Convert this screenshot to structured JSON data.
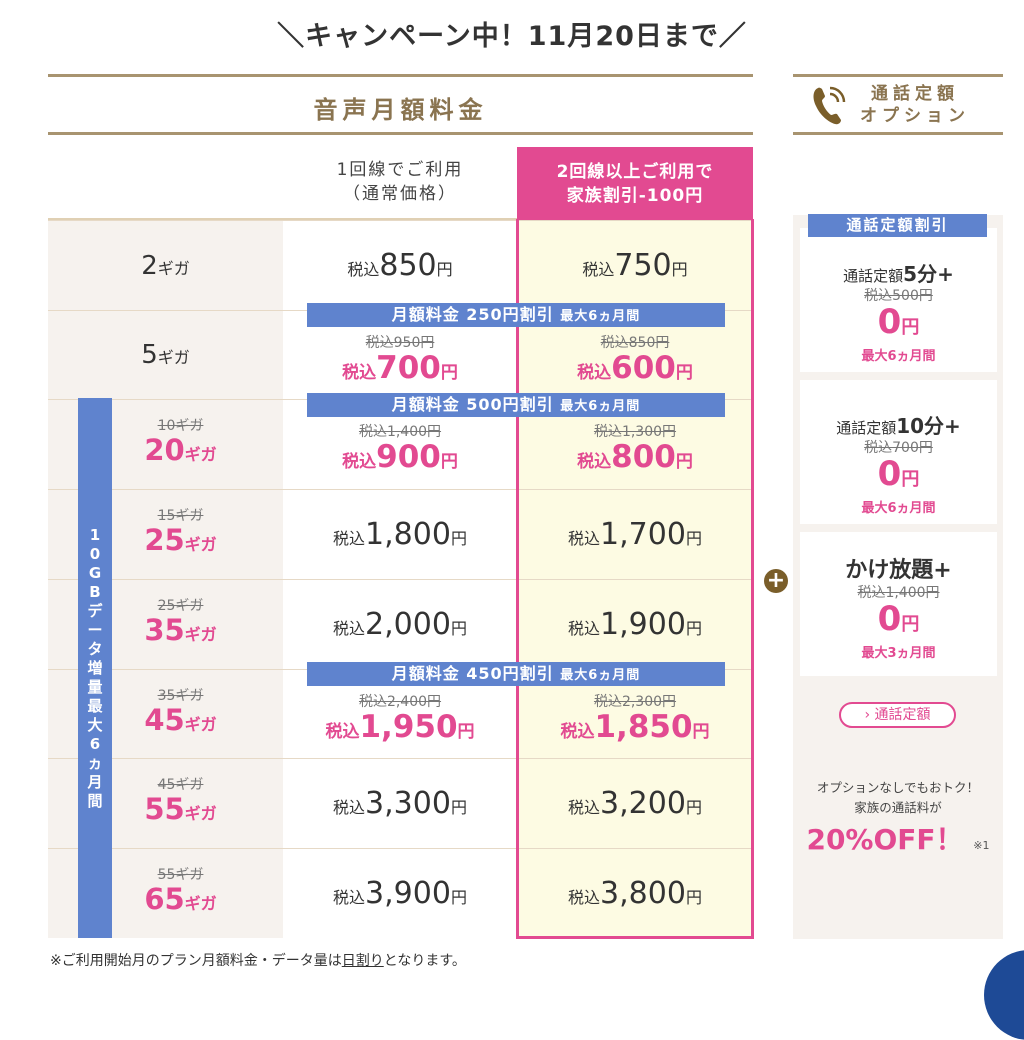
{
  "campaign_banner": "＼キャンペーン中！11月20日まで／",
  "section_title": "音声月額料金",
  "option_header": {
    "line1": "通話定額",
    "line2": "オプション",
    "icon": "phone-icon"
  },
  "columns": {
    "single": {
      "line1": "1回線でご利用",
      "line2": "（通常価格）"
    },
    "family": {
      "line1": "2回線以上ご利用で",
      "line2": "家族割引-100円"
    }
  },
  "tax_prefix": "税込",
  "yen": "円",
  "gb_unit": "ギガ",
  "data_boost_label": "10GBデータ増量 最大6ヵ月間",
  "banners": [
    {
      "main": "月額料金 250円割引 ",
      "sub": "最大6ヵ月間"
    },
    {
      "main": "月額料金 500円割引 ",
      "sub": "最大6ヵ月間"
    },
    {
      "main": "月額料金 450円割引 ",
      "sub": "最大6ヵ月間"
    }
  ],
  "rows": [
    {
      "gb": "2",
      "single": "850",
      "family": "750"
    },
    {
      "gb": "5",
      "single_old": "税込950円",
      "single": "700",
      "family_old": "税込850円",
      "family": "600",
      "discounted": true
    },
    {
      "gb_old": "10ギガ",
      "gb": "20",
      "single_old": "税込1,400円",
      "single": "900",
      "family_old": "税込1,300円",
      "family": "800",
      "discounted": true
    },
    {
      "gb_old": "15ギガ",
      "gb": "25",
      "single": "1,800",
      "family": "1,700"
    },
    {
      "gb_old": "25ギガ",
      "gb": "35",
      "single": "2,000",
      "family": "1,900"
    },
    {
      "gb_old": "35ギガ",
      "gb": "45",
      "single_old": "税込2,400円",
      "single": "1,950",
      "family_old": "税込2,300円",
      "family": "1,850",
      "discounted": true
    },
    {
      "gb_old": "45ギガ",
      "gb": "55",
      "single": "3,300",
      "family": "3,200"
    },
    {
      "gb_old": "55ギガ",
      "gb": "65",
      "single": "3,900",
      "family": "3,800"
    }
  ],
  "options": {
    "tag": "通話定額割引",
    "cards": [
      {
        "prefix": "通話定額",
        "name": "5分+",
        "old": "税込500円",
        "price": "0",
        "period": "最大6ヵ月間"
      },
      {
        "prefix": "通話定額",
        "name": "10分+",
        "old": "税込700円",
        "price": "0",
        "period": "最大6ヵ月間"
      },
      {
        "prefix": "",
        "name": "かけ放題+",
        "old": "税込1,400円",
        "price": "0",
        "period": "最大3ヵ月間"
      }
    ],
    "plus": "+",
    "button": "›  通話定額",
    "note_line1": "オプションなしでもおトク！",
    "note_line2": "家族の通話料が",
    "off": "20%OFF！",
    "off_note": "※1"
  },
  "footer": {
    "pre": "※ご利用開始月のプラン月額料金・データ量は",
    "link": "日割り",
    "post": "となります。"
  },
  "colors": {
    "pink": "#e24a91",
    "blue": "#5f83ce",
    "gold": "#a89470"
  }
}
